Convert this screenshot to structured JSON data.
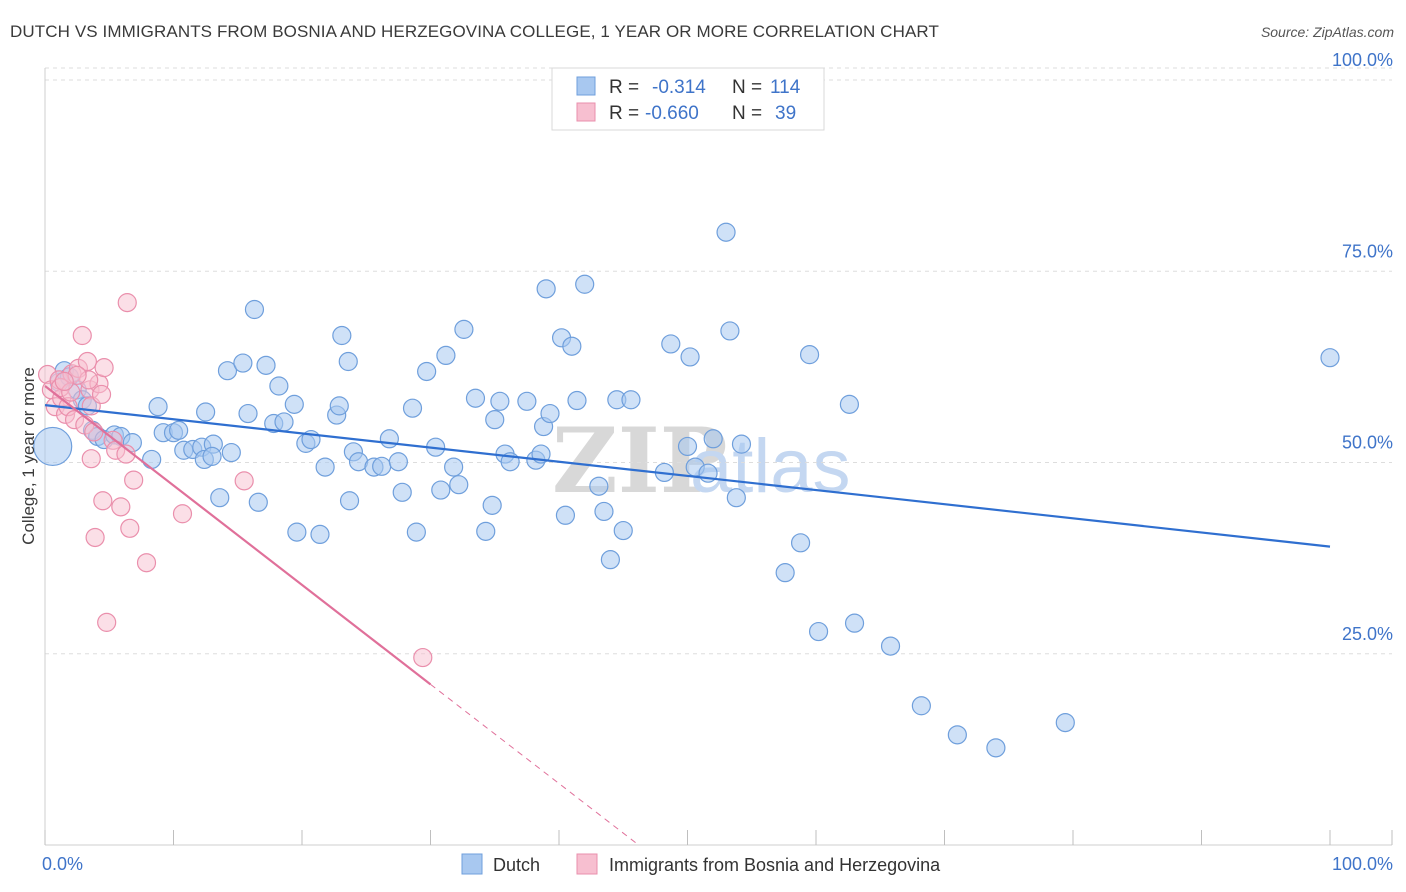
{
  "title": "DUTCH VS IMMIGRANTS FROM BOSNIA AND HERZEGOVINA COLLEGE, 1 YEAR OR MORE CORRELATION CHART",
  "source": "Source: ZipAtlas.com",
  "watermark": {
    "zip": "ZIP",
    "atlas": "atlas"
  },
  "colors": {
    "dutch_fill": "#a8c8f0",
    "dutch_stroke": "#6f9fdc",
    "dutch_line": "#2f6fd0",
    "bosnia_fill": "#f7bfd0",
    "bosnia_stroke": "#ea8fac",
    "bosnia_line": "#e0709a",
    "axis_text": "#3f74c9",
    "grid": "#dddddd"
  },
  "legend": {
    "entries": [
      {
        "r_label": "R =",
        "r_value": "-0.314",
        "n_label": "N =",
        "n_value": "114"
      },
      {
        "r_label": "R =",
        "r_value": "-0.660",
        "n_label": "N =",
        "n_value": "39"
      }
    ]
  },
  "bottom_legend": {
    "dutch": "Dutch",
    "bosnia": "Immigrants from Bosnia and Herzegovina"
  },
  "chart_data": {
    "type": "scatter",
    "title": "DUTCH VS IMMIGRANTS FROM BOSNIA AND HERZEGOVINA COLLEGE, 1 YEAR OR MORE CORRELATION CHART",
    "xlabel": "",
    "ylabel": "College, 1 year or more",
    "xlim": [
      0,
      100
    ],
    "ylim": [
      0,
      100
    ],
    "x_tick_labels": [
      {
        "value": 0,
        "label": "0.0%"
      },
      {
        "value": 100,
        "label": "100.0%"
      }
    ],
    "y_tick_labels": [
      {
        "value": 25,
        "label": "25.0%"
      },
      {
        "value": 50,
        "label": "50.0%"
      },
      {
        "value": 75,
        "label": "75.0%"
      },
      {
        "value": 100,
        "label": "100.0%"
      }
    ],
    "series": [
      {
        "name": "Dutch",
        "r": -0.314,
        "n": 114,
        "trend": {
          "x": [
            0,
            100
          ],
          "y": [
            57.5,
            39.0
          ]
        },
        "points": [
          [
            0.6,
            52.1
          ],
          [
            1.1,
            60.5
          ],
          [
            1.5,
            62.0
          ],
          [
            1.9,
            61.2
          ],
          [
            2.5,
            59.5
          ],
          [
            2.9,
            58.2
          ],
          [
            3.3,
            57.4
          ],
          [
            3.7,
            54.2
          ],
          [
            4.1,
            53.4
          ],
          [
            4.6,
            53.0
          ],
          [
            5.4,
            53.6
          ],
          [
            5.9,
            53.4
          ],
          [
            6.8,
            52.6
          ],
          [
            8.3,
            50.4
          ],
          [
            8.8,
            57.3
          ],
          [
            9.2,
            53.9
          ],
          [
            10.0,
            53.9
          ],
          [
            10.4,
            54.2
          ],
          [
            10.8,
            51.6
          ],
          [
            11.5,
            51.7
          ],
          [
            12.2,
            52.0
          ],
          [
            12.4,
            50.4
          ],
          [
            12.5,
            56.6
          ],
          [
            13.1,
            52.4
          ],
          [
            13.6,
            45.4
          ],
          [
            14.2,
            62.0
          ],
          [
            14.5,
            51.3
          ],
          [
            15.4,
            63.0
          ],
          [
            15.8,
            56.4
          ],
          [
            16.3,
            70.0
          ],
          [
            16.6,
            44.8
          ],
          [
            17.2,
            62.7
          ],
          [
            17.8,
            55.1
          ],
          [
            18.2,
            60.0
          ],
          [
            18.6,
            55.3
          ],
          [
            19.4,
            57.6
          ],
          [
            19.6,
            40.9
          ],
          [
            20.3,
            52.5
          ],
          [
            20.7,
            53.0
          ],
          [
            21.4,
            40.6
          ],
          [
            21.8,
            49.4
          ],
          [
            22.7,
            56.2
          ],
          [
            22.9,
            57.4
          ],
          [
            23.1,
            66.6
          ],
          [
            23.6,
            63.2
          ],
          [
            23.7,
            45.0
          ],
          [
            24.0,
            51.4
          ],
          [
            24.4,
            50.1
          ],
          [
            25.6,
            49.4
          ],
          [
            26.2,
            49.5
          ],
          [
            26.8,
            53.1
          ],
          [
            27.5,
            50.1
          ],
          [
            27.8,
            46.1
          ],
          [
            28.6,
            57.1
          ],
          [
            28.9,
            40.9
          ],
          [
            29.7,
            61.9
          ],
          [
            30.4,
            52.0
          ],
          [
            30.8,
            46.4
          ],
          [
            31.2,
            64.0
          ],
          [
            31.8,
            49.4
          ],
          [
            32.2,
            47.1
          ],
          [
            32.6,
            67.4
          ],
          [
            33.5,
            58.4
          ],
          [
            34.3,
            41.0
          ],
          [
            34.8,
            44.4
          ],
          [
            35.0,
            55.6
          ],
          [
            35.4,
            58.0
          ],
          [
            35.8,
            51.1
          ],
          [
            36.2,
            50.1
          ],
          [
            37.5,
            58.0
          ],
          [
            38.2,
            50.3
          ],
          [
            38.6,
            51.1
          ],
          [
            38.8,
            54.7
          ],
          [
            39.3,
            56.4
          ],
          [
            39.0,
            72.7
          ],
          [
            40.2,
            66.3
          ],
          [
            40.5,
            43.1
          ],
          [
            41.0,
            65.2
          ],
          [
            41.4,
            58.1
          ],
          [
            42.0,
            73.3
          ],
          [
            43.1,
            46.9
          ],
          [
            43.5,
            43.6
          ],
          [
            44.0,
            37.3
          ],
          [
            44.5,
            58.2
          ],
          [
            45.0,
            41.1
          ],
          [
            45.6,
            58.2
          ],
          [
            48.2,
            48.7
          ],
          [
            48.7,
            65.5
          ],
          [
            50.0,
            52.1
          ],
          [
            50.2,
            63.8
          ],
          [
            50.6,
            49.4
          ],
          [
            51.6,
            48.6
          ],
          [
            52.0,
            53.1
          ],
          [
            53.0,
            80.1
          ],
          [
            53.3,
            67.2
          ],
          [
            53.8,
            45.4
          ],
          [
            54.2,
            52.4
          ],
          [
            57.6,
            35.6
          ],
          [
            58.8,
            39.5
          ],
          [
            59.5,
            64.1
          ],
          [
            60.2,
            27.9
          ],
          [
            62.6,
            57.6
          ],
          [
            63.0,
            29.0
          ],
          [
            65.8,
            26.0
          ],
          [
            68.2,
            18.2
          ],
          [
            71.0,
            14.4
          ],
          [
            74.0,
            12.7
          ],
          [
            79.4,
            16.0
          ],
          [
            100.0,
            63.7
          ],
          [
            13.0,
            50.8
          ]
        ]
      },
      {
        "name": "Immigrants from Bosnia and Herzegovina",
        "r": -0.66,
        "n": 39,
        "trend": {
          "x": [
            0,
            30
          ],
          "y": [
            60.0,
            21.0
          ]
        },
        "trend_extension": {
          "x": [
            30,
            46.2
          ],
          "y": [
            21.0,
            0.0
          ]
        },
        "points": [
          [
            0.2,
            61.5
          ],
          [
            0.5,
            59.5
          ],
          [
            0.8,
            57.3
          ],
          [
            1.1,
            60.8
          ],
          [
            1.3,
            58.4
          ],
          [
            1.6,
            56.3
          ],
          [
            1.8,
            57.3
          ],
          [
            2.1,
            61.6
          ],
          [
            2.3,
            55.6
          ],
          [
            2.6,
            62.3
          ],
          [
            2.9,
            66.6
          ],
          [
            3.1,
            54.9
          ],
          [
            3.3,
            63.2
          ],
          [
            3.5,
            59.5
          ],
          [
            3.6,
            50.5
          ],
          [
            3.8,
            54.0
          ],
          [
            3.6,
            57.4
          ],
          [
            3.9,
            40.2
          ],
          [
            4.2,
            60.3
          ],
          [
            4.4,
            58.9
          ],
          [
            4.5,
            45.0
          ],
          [
            4.8,
            29.1
          ],
          [
            5.3,
            52.9
          ],
          [
            5.5,
            51.6
          ],
          [
            5.9,
            44.2
          ],
          [
            6.3,
            51.1
          ],
          [
            6.4,
            70.9
          ],
          [
            6.6,
            41.4
          ],
          [
            6.9,
            47.7
          ],
          [
            7.9,
            36.9
          ],
          [
            10.7,
            43.3
          ],
          [
            15.5,
            47.6
          ],
          [
            29.4,
            24.5
          ],
          [
            1.2,
            59.8
          ],
          [
            2.0,
            59.2
          ],
          [
            4.6,
            62.4
          ],
          [
            3.4,
            60.8
          ],
          [
            2.5,
            61.4
          ],
          [
            1.5,
            60.6
          ]
        ]
      }
    ]
  }
}
